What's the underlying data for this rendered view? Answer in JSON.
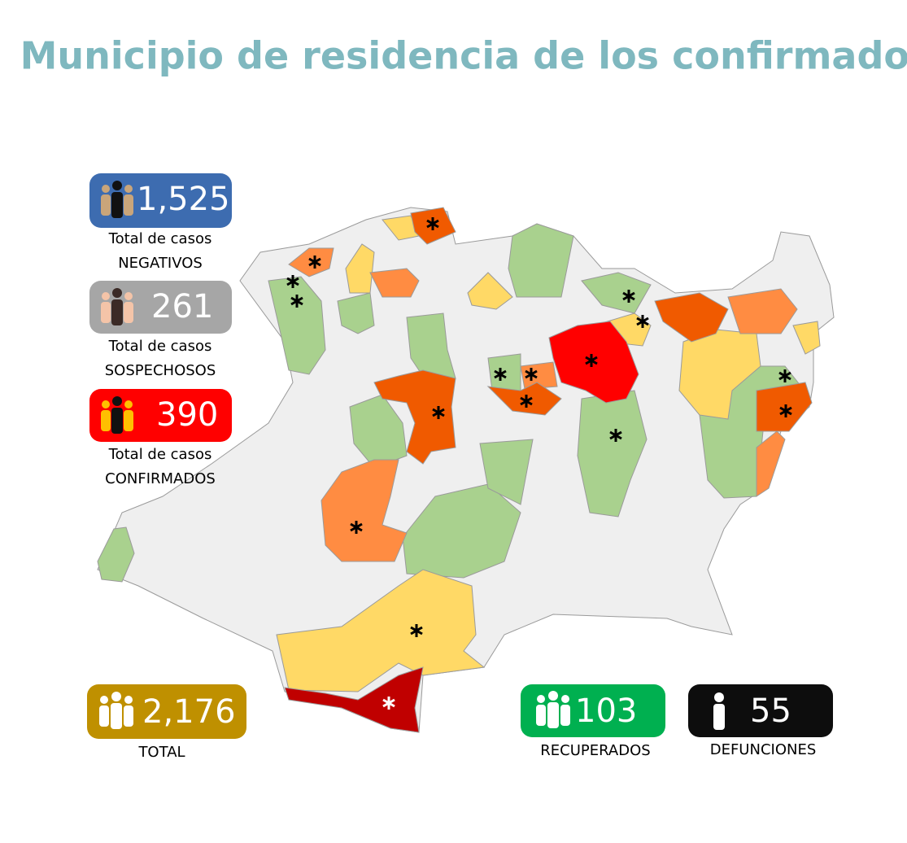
{
  "header": {
    "title": "Municipio de residencia de los confirmados"
  },
  "stats": [
    {
      "value": "1,525",
      "label": "Total de casos",
      "status": "NEGATIVOS"
    },
    {
      "value": "261",
      "label": "Total de casos",
      "status": "SOSPECHOSOS"
    },
    {
      "value": "390",
      "label": "Total de casos",
      "status": "CONFIRMADOS"
    }
  ],
  "totals": [
    {
      "value": "2,176",
      "label": "TOTAL"
    },
    {
      "value": "103",
      "label": "RECUPERADOS"
    },
    {
      "value": "55",
      "label": "DEFUNCIONES"
    }
  ]
}
